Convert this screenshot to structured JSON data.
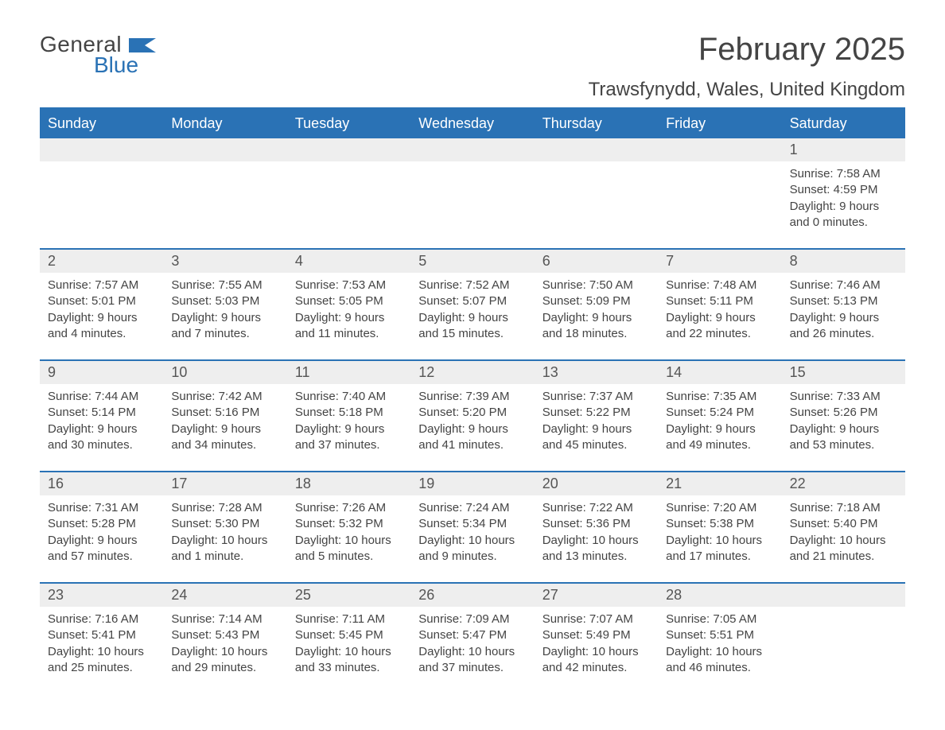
{
  "brand": {
    "a": "General",
    "b": "Blue",
    "flag_color": "#2a72b5"
  },
  "title": "February 2025",
  "location": "Trawsfynydd, Wales, United Kingdom",
  "colors": {
    "header_bg": "#2a72b5",
    "header_text": "#ffffff",
    "daynum_bg": "#eeeeee",
    "divider": "#2a72b5",
    "text": "#444444"
  },
  "days_of_week": [
    "Sunday",
    "Monday",
    "Tuesday",
    "Wednesday",
    "Thursday",
    "Friday",
    "Saturday"
  ],
  "weeks": [
    [
      null,
      null,
      null,
      null,
      null,
      null,
      {
        "n": "1",
        "sunrise": "Sunrise: 7:58 AM",
        "sunset": "Sunset: 4:59 PM",
        "day1": "Daylight: 9 hours",
        "day2": "and 0 minutes."
      }
    ],
    [
      {
        "n": "2",
        "sunrise": "Sunrise: 7:57 AM",
        "sunset": "Sunset: 5:01 PM",
        "day1": "Daylight: 9 hours",
        "day2": "and 4 minutes."
      },
      {
        "n": "3",
        "sunrise": "Sunrise: 7:55 AM",
        "sunset": "Sunset: 5:03 PM",
        "day1": "Daylight: 9 hours",
        "day2": "and 7 minutes."
      },
      {
        "n": "4",
        "sunrise": "Sunrise: 7:53 AM",
        "sunset": "Sunset: 5:05 PM",
        "day1": "Daylight: 9 hours",
        "day2": "and 11 minutes."
      },
      {
        "n": "5",
        "sunrise": "Sunrise: 7:52 AM",
        "sunset": "Sunset: 5:07 PM",
        "day1": "Daylight: 9 hours",
        "day2": "and 15 minutes."
      },
      {
        "n": "6",
        "sunrise": "Sunrise: 7:50 AM",
        "sunset": "Sunset: 5:09 PM",
        "day1": "Daylight: 9 hours",
        "day2": "and 18 minutes."
      },
      {
        "n": "7",
        "sunrise": "Sunrise: 7:48 AM",
        "sunset": "Sunset: 5:11 PM",
        "day1": "Daylight: 9 hours",
        "day2": "and 22 minutes."
      },
      {
        "n": "8",
        "sunrise": "Sunrise: 7:46 AM",
        "sunset": "Sunset: 5:13 PM",
        "day1": "Daylight: 9 hours",
        "day2": "and 26 minutes."
      }
    ],
    [
      {
        "n": "9",
        "sunrise": "Sunrise: 7:44 AM",
        "sunset": "Sunset: 5:14 PM",
        "day1": "Daylight: 9 hours",
        "day2": "and 30 minutes."
      },
      {
        "n": "10",
        "sunrise": "Sunrise: 7:42 AM",
        "sunset": "Sunset: 5:16 PM",
        "day1": "Daylight: 9 hours",
        "day2": "and 34 minutes."
      },
      {
        "n": "11",
        "sunrise": "Sunrise: 7:40 AM",
        "sunset": "Sunset: 5:18 PM",
        "day1": "Daylight: 9 hours",
        "day2": "and 37 minutes."
      },
      {
        "n": "12",
        "sunrise": "Sunrise: 7:39 AM",
        "sunset": "Sunset: 5:20 PM",
        "day1": "Daylight: 9 hours",
        "day2": "and 41 minutes."
      },
      {
        "n": "13",
        "sunrise": "Sunrise: 7:37 AM",
        "sunset": "Sunset: 5:22 PM",
        "day1": "Daylight: 9 hours",
        "day2": "and 45 minutes."
      },
      {
        "n": "14",
        "sunrise": "Sunrise: 7:35 AM",
        "sunset": "Sunset: 5:24 PM",
        "day1": "Daylight: 9 hours",
        "day2": "and 49 minutes."
      },
      {
        "n": "15",
        "sunrise": "Sunrise: 7:33 AM",
        "sunset": "Sunset: 5:26 PM",
        "day1": "Daylight: 9 hours",
        "day2": "and 53 minutes."
      }
    ],
    [
      {
        "n": "16",
        "sunrise": "Sunrise: 7:31 AM",
        "sunset": "Sunset: 5:28 PM",
        "day1": "Daylight: 9 hours",
        "day2": "and 57 minutes."
      },
      {
        "n": "17",
        "sunrise": "Sunrise: 7:28 AM",
        "sunset": "Sunset: 5:30 PM",
        "day1": "Daylight: 10 hours",
        "day2": "and 1 minute."
      },
      {
        "n": "18",
        "sunrise": "Sunrise: 7:26 AM",
        "sunset": "Sunset: 5:32 PM",
        "day1": "Daylight: 10 hours",
        "day2": "and 5 minutes."
      },
      {
        "n": "19",
        "sunrise": "Sunrise: 7:24 AM",
        "sunset": "Sunset: 5:34 PM",
        "day1": "Daylight: 10 hours",
        "day2": "and 9 minutes."
      },
      {
        "n": "20",
        "sunrise": "Sunrise: 7:22 AM",
        "sunset": "Sunset: 5:36 PM",
        "day1": "Daylight: 10 hours",
        "day2": "and 13 minutes."
      },
      {
        "n": "21",
        "sunrise": "Sunrise: 7:20 AM",
        "sunset": "Sunset: 5:38 PM",
        "day1": "Daylight: 10 hours",
        "day2": "and 17 minutes."
      },
      {
        "n": "22",
        "sunrise": "Sunrise: 7:18 AM",
        "sunset": "Sunset: 5:40 PM",
        "day1": "Daylight: 10 hours",
        "day2": "and 21 minutes."
      }
    ],
    [
      {
        "n": "23",
        "sunrise": "Sunrise: 7:16 AM",
        "sunset": "Sunset: 5:41 PM",
        "day1": "Daylight: 10 hours",
        "day2": "and 25 minutes."
      },
      {
        "n": "24",
        "sunrise": "Sunrise: 7:14 AM",
        "sunset": "Sunset: 5:43 PM",
        "day1": "Daylight: 10 hours",
        "day2": "and 29 minutes."
      },
      {
        "n": "25",
        "sunrise": "Sunrise: 7:11 AM",
        "sunset": "Sunset: 5:45 PM",
        "day1": "Daylight: 10 hours",
        "day2": "and 33 minutes."
      },
      {
        "n": "26",
        "sunrise": "Sunrise: 7:09 AM",
        "sunset": "Sunset: 5:47 PM",
        "day1": "Daylight: 10 hours",
        "day2": "and 37 minutes."
      },
      {
        "n": "27",
        "sunrise": "Sunrise: 7:07 AM",
        "sunset": "Sunset: 5:49 PM",
        "day1": "Daylight: 10 hours",
        "day2": "and 42 minutes."
      },
      {
        "n": "28",
        "sunrise": "Sunrise: 7:05 AM",
        "sunset": "Sunset: 5:51 PM",
        "day1": "Daylight: 10 hours",
        "day2": "and 46 minutes."
      },
      null
    ]
  ]
}
